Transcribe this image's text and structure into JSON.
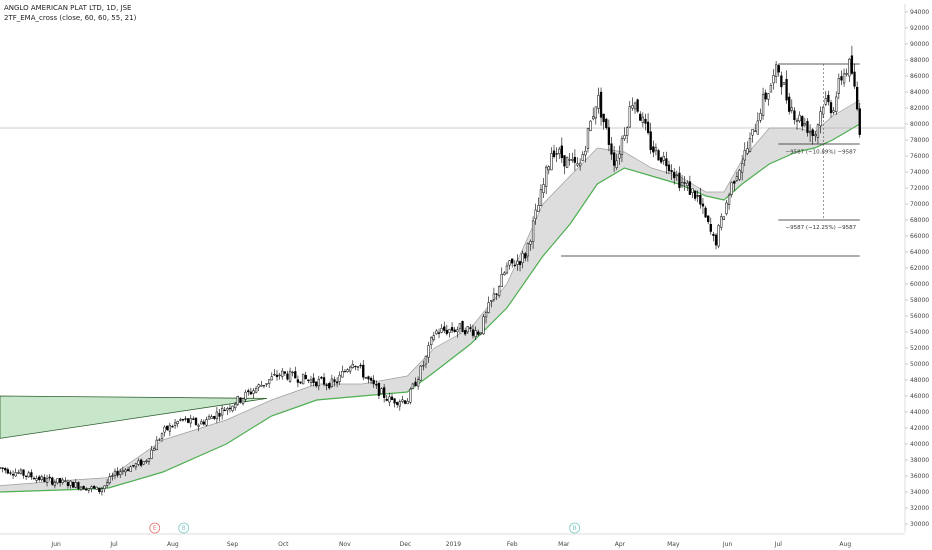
{
  "header": {
    "title": "ANGLO AMERICAN PLAT LTD, 1D, JSE",
    "indicator": "2TF_EMA_cross (close, 60, 60, 55, 21)"
  },
  "colors": {
    "candle_up": "#ffffff",
    "candle_down": "#000000",
    "ema_fast": "#4caf50",
    "ema_red": "#e53935",
    "ema_slow": "#9e9e9e",
    "band_fill": "#d9d9d9",
    "triangle_fill": "#c8e6c9",
    "triangle_line": "#2e5e2e",
    "marker_e": "#e57373",
    "marker_b": "#80cbc4"
  },
  "chart_data": {
    "type": "candlestick",
    "y_ticks": [
      30000,
      32000,
      34000,
      36000,
      38000,
      40000,
      42000,
      44000,
      46000,
      48000,
      50000,
      52000,
      54000,
      56000,
      58000,
      60000,
      62000,
      64000,
      66000,
      68000,
      70000,
      72000,
      74000,
      76000,
      78000,
      80000,
      82000,
      84000,
      86000,
      88000,
      90000,
      92000,
      94000
    ],
    "ylim": [
      29000,
      95000
    ],
    "x_ticks": [
      "Jun",
      "Jul",
      "Aug",
      "Sep",
      "Oct",
      "Nov",
      "Dec",
      "2019",
      "Feb",
      "Mar",
      "Apr",
      "May",
      "Jun",
      "Jul",
      "Aug"
    ],
    "xlim": [
      0,
      100
    ],
    "x_tick_positions": [
      6.2,
      12.6,
      19.1,
      25.7,
      31.3,
      38.1,
      44.8,
      50.1,
      56.6,
      62.3,
      68.5,
      74.4,
      80.4,
      86.0,
      93.4
    ],
    "price_path": [
      [
        0,
        37000
      ],
      [
        5,
        35500
      ],
      [
        8,
        35000
      ],
      [
        11,
        34200
      ],
      [
        13,
        36500
      ],
      [
        16,
        37800
      ],
      [
        18,
        41500
      ],
      [
        20,
        43000
      ],
      [
        22,
        42500
      ],
      [
        25,
        44500
      ],
      [
        29,
        47500
      ],
      [
        31,
        48800
      ],
      [
        34,
        48000
      ],
      [
        37,
        47500
      ],
      [
        39,
        50500
      ],
      [
        41,
        47500
      ],
      [
        43,
        45500
      ],
      [
        45,
        45500
      ],
      [
        47,
        50500
      ],
      [
        48,
        54000
      ],
      [
        51,
        54500
      ],
      [
        53,
        54000
      ],
      [
        54,
        57000
      ],
      [
        56,
        62000
      ],
      [
        58,
        63500
      ],
      [
        60,
        72000
      ],
      [
        61,
        77000
      ],
      [
        62,
        76000
      ],
      [
        63,
        75000
      ],
      [
        64,
        74500
      ],
      [
        66,
        83500
      ],
      [
        67,
        79000
      ],
      [
        68,
        75000
      ],
      [
        70,
        83500
      ],
      [
        72,
        77000
      ],
      [
        74,
        75000
      ],
      [
        75,
        73000
      ],
      [
        77,
        71000
      ],
      [
        79,
        65000
      ],
      [
        80,
        69000
      ],
      [
        81,
        73000
      ],
      [
        82,
        75500
      ],
      [
        83,
        78000
      ],
      [
        84,
        82000
      ],
      [
        86,
        87000
      ],
      [
        87,
        83000
      ],
      [
        88,
        81000
      ],
      [
        89,
        80000
      ],
      [
        90,
        78500
      ],
      [
        91,
        83000
      ],
      [
        92,
        82000
      ],
      [
        93,
        86000
      ],
      [
        94,
        87500
      ],
      [
        95,
        79500
      ]
    ],
    "ema_fast_path": [
      [
        0,
        34000
      ],
      [
        8,
        34300
      ],
      [
        12,
        34500
      ],
      [
        18,
        36500
      ],
      [
        25,
        40000
      ],
      [
        30,
        43500
      ],
      [
        35,
        45500
      ],
      [
        40,
        46000
      ],
      [
        45,
        46500
      ],
      [
        48,
        49000
      ],
      [
        52,
        52500
      ],
      [
        56,
        57000
      ],
      [
        60,
        63500
      ],
      [
        63,
        67500
      ],
      [
        66,
        72500
      ],
      [
        69,
        74500
      ],
      [
        72,
        73500
      ],
      [
        75,
        72500
      ],
      [
        78,
        71000
      ],
      [
        80,
        70500
      ],
      [
        82,
        72500
      ],
      [
        85,
        75000
      ],
      [
        88,
        76500
      ],
      [
        90,
        77000
      ],
      [
        92,
        78000
      ],
      [
        95,
        80000
      ]
    ],
    "ema_slow_path": [
      [
        0,
        34800
      ],
      [
        8,
        35500
      ],
      [
        12,
        35800
      ],
      [
        18,
        40500
      ],
      [
        25,
        43000
      ],
      [
        30,
        45500
      ],
      [
        35,
        47500
      ],
      [
        40,
        47500
      ],
      [
        45,
        48500
      ],
      [
        48,
        52000
      ],
      [
        52,
        54500
      ],
      [
        56,
        60000
      ],
      [
        60,
        70000
      ],
      [
        63,
        73500
      ],
      [
        66,
        77000
      ],
      [
        69,
        76500
      ],
      [
        72,
        74500
      ],
      [
        75,
        73500
      ],
      [
        78,
        71500
      ],
      [
        80,
        71500
      ],
      [
        82,
        75500
      ],
      [
        85,
        79500
      ],
      [
        88,
        79500
      ],
      [
        90,
        79000
      ],
      [
        92,
        81000
      ],
      [
        95,
        83000
      ]
    ],
    "triangle": {
      "apex_x": 29.5,
      "apex_y": 45700,
      "left_top_y": 46000,
      "left_bottom_y": 40700
    },
    "levels": [
      {
        "y": 79500,
        "x1": 0,
        "x2": 100
      },
      {
        "y": 63500,
        "x1": 62,
        "x2": 95
      },
      {
        "y": 87500,
        "x1": 86,
        "x2": 95
      },
      {
        "y": 77500,
        "x1": 86,
        "x2": 95
      },
      {
        "y": 68000,
        "x1": 86,
        "x2": 95
      }
    ],
    "measure": {
      "x": 91,
      "y_top": 87500,
      "y_bottom": 68000
    },
    "annotations": [
      {
        "text": "−9587 (−10.89%) −9587",
        "x": 86.8,
        "y": 76300
      },
      {
        "text": "−9587 (−12.25%) −9587",
        "x": 86.8,
        "y": 66900
      }
    ],
    "markers": [
      {
        "label": "E",
        "x": 17.1
      },
      {
        "label": "B",
        "x": 20.3
      },
      {
        "label": "B",
        "x": 63.5
      }
    ]
  }
}
